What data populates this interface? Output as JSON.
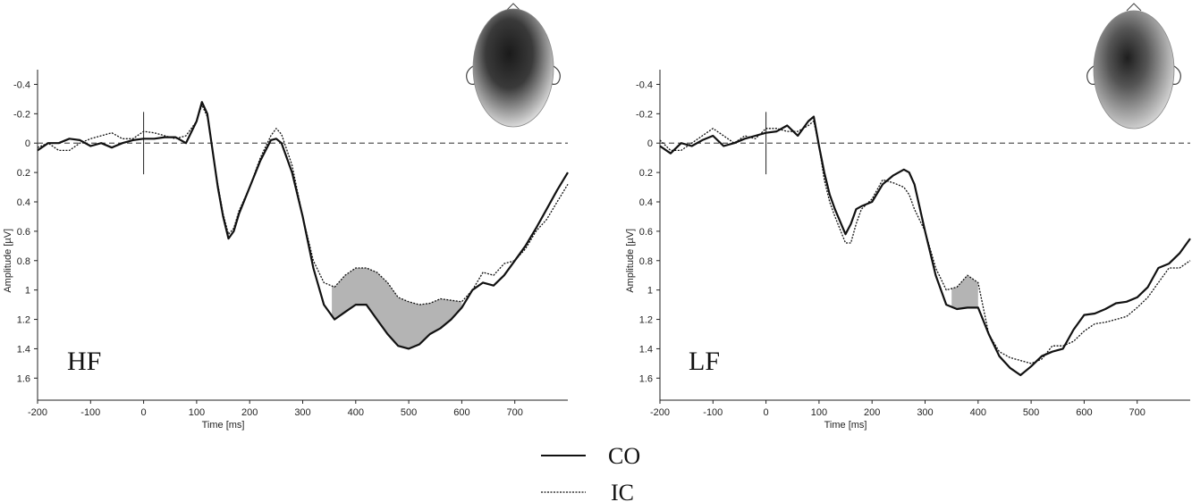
{
  "chart_data": [
    {
      "type": "line",
      "panel_label": "HF",
      "xlabel": "Time [ms]",
      "ylabel": "Amplitude [µV]",
      "xlim": [
        -200,
        800
      ],
      "ylim": [
        -0.5,
        1.75
      ],
      "y_inverted": true,
      "xticks": [
        -200,
        -100,
        0,
        100,
        200,
        300,
        400,
        500,
        600,
        700
      ],
      "yticks": [
        -0.4,
        -0.2,
        0,
        0.2,
        0.4,
        0.6,
        0.8,
        1,
        1.2,
        1.4,
        1.6
      ],
      "ytick_labels": [
        "-0.4",
        "-0.2",
        "0",
        "0.2",
        "0.4",
        "0.6",
        "0.8",
        "1",
        "1.2",
        "1.4",
        "1.6"
      ],
      "shaded_difference": [
        355,
        600
      ],
      "series": [
        {
          "name": "CO",
          "style": "solid",
          "x": [
            -200,
            -180,
            -160,
            -140,
            -120,
            -100,
            -80,
            -60,
            -40,
            -20,
            0,
            20,
            40,
            60,
            80,
            100,
            110,
            120,
            130,
            140,
            150,
            160,
            170,
            180,
            200,
            220,
            240,
            250,
            260,
            280,
            300,
            320,
            340,
            360,
            380,
            400,
            420,
            440,
            460,
            480,
            500,
            520,
            540,
            560,
            580,
            600,
            620,
            640,
            660,
            680,
            700,
            720,
            740,
            760,
            780,
            800
          ],
          "y": [
            0.05,
            0.0,
            0.0,
            -0.03,
            -0.02,
            0.02,
            0.0,
            0.03,
            0.0,
            -0.02,
            -0.03,
            -0.03,
            -0.04,
            -0.04,
            0.0,
            -0.15,
            -0.28,
            -0.2,
            0.05,
            0.3,
            0.5,
            0.65,
            0.6,
            0.48,
            0.3,
            0.12,
            -0.02,
            -0.03,
            0.0,
            0.2,
            0.5,
            0.85,
            1.1,
            1.2,
            1.15,
            1.1,
            1.1,
            1.2,
            1.3,
            1.38,
            1.4,
            1.37,
            1.3,
            1.26,
            1.2,
            1.12,
            1.0,
            0.95,
            0.97,
            0.9,
            0.8,
            0.7,
            0.58,
            0.45,
            0.32,
            0.2
          ]
        },
        {
          "name": "IC",
          "style": "dotted",
          "x": [
            -200,
            -180,
            -160,
            -140,
            -120,
            -100,
            -80,
            -60,
            -40,
            -20,
            0,
            20,
            40,
            60,
            80,
            100,
            110,
            120,
            130,
            140,
            150,
            160,
            170,
            180,
            200,
            220,
            240,
            250,
            260,
            280,
            300,
            320,
            340,
            360,
            380,
            400,
            420,
            440,
            460,
            480,
            500,
            520,
            540,
            560,
            580,
            600,
            620,
            640,
            660,
            680,
            700,
            720,
            740,
            760,
            780,
            800
          ],
          "y": [
            0.03,
            0.0,
            0.05,
            0.05,
            0.0,
            -0.03,
            -0.05,
            -0.07,
            -0.03,
            -0.03,
            -0.08,
            -0.07,
            -0.05,
            -0.03,
            -0.05,
            -0.15,
            -0.26,
            -0.18,
            0.05,
            0.28,
            0.48,
            0.62,
            0.58,
            0.46,
            0.3,
            0.1,
            -0.05,
            -0.1,
            -0.06,
            0.15,
            0.5,
            0.8,
            0.95,
            0.98,
            0.9,
            0.85,
            0.85,
            0.88,
            0.95,
            1.05,
            1.08,
            1.1,
            1.09,
            1.06,
            1.07,
            1.08,
            1.0,
            0.88,
            0.9,
            0.82,
            0.8,
            0.72,
            0.6,
            0.52,
            0.4,
            0.28
          ]
        }
      ]
    },
    {
      "type": "line",
      "panel_label": "LF",
      "xlabel": "Time [ms]",
      "ylabel": "Amplitude [µV]",
      "xlim": [
        -200,
        800
      ],
      "ylim": [
        -0.5,
        1.75
      ],
      "y_inverted": true,
      "xticks": [
        -200,
        -100,
        0,
        100,
        200,
        300,
        400,
        500,
        600,
        700
      ],
      "yticks": [
        -0.4,
        -0.2,
        0,
        0.2,
        0.4,
        0.6,
        0.8,
        1,
        1.2,
        1.4,
        1.6
      ],
      "ytick_labels": [
        "-0.4",
        "-0.2",
        "0",
        "0.2",
        "0.4",
        "0.6",
        "0.8",
        "1",
        "1.2",
        "1.4",
        "1.6"
      ],
      "shaded_difference": [
        350,
        400
      ],
      "series": [
        {
          "name": "CO",
          "style": "solid",
          "x": [
            -200,
            -180,
            -160,
            -140,
            -120,
            -100,
            -80,
            -60,
            -40,
            -20,
            0,
            20,
            40,
            60,
            80,
            90,
            100,
            110,
            120,
            130,
            150,
            160,
            170,
            180,
            200,
            220,
            240,
            260,
            270,
            280,
            300,
            320,
            340,
            360,
            380,
            400,
            420,
            440,
            460,
            480,
            500,
            520,
            540,
            560,
            580,
            600,
            620,
            640,
            660,
            680,
            700,
            720,
            740,
            760,
            780,
            800
          ],
          "y": [
            0.02,
            0.07,
            0.0,
            0.02,
            -0.02,
            -0.05,
            0.02,
            0.0,
            -0.03,
            -0.05,
            -0.07,
            -0.08,
            -0.12,
            -0.05,
            -0.15,
            -0.18,
            0.02,
            0.2,
            0.35,
            0.45,
            0.62,
            0.55,
            0.45,
            0.43,
            0.4,
            0.28,
            0.22,
            0.18,
            0.2,
            0.28,
            0.6,
            0.9,
            1.1,
            1.13,
            1.12,
            1.12,
            1.3,
            1.45,
            1.53,
            1.58,
            1.52,
            1.45,
            1.42,
            1.4,
            1.27,
            1.17,
            1.16,
            1.13,
            1.09,
            1.08,
            1.05,
            0.98,
            0.85,
            0.82,
            0.75,
            0.65
          ]
        },
        {
          "name": "IC",
          "style": "dotted",
          "x": [
            -200,
            -180,
            -160,
            -140,
            -120,
            -100,
            -80,
            -60,
            -40,
            -20,
            0,
            20,
            40,
            60,
            80,
            90,
            100,
            110,
            120,
            130,
            150,
            160,
            170,
            180,
            200,
            220,
            240,
            260,
            270,
            280,
            300,
            320,
            340,
            360,
            380,
            400,
            420,
            440,
            460,
            480,
            500,
            520,
            540,
            560,
            580,
            600,
            620,
            640,
            660,
            680,
            700,
            720,
            740,
            760,
            780,
            800
          ],
          "y": [
            -0.02,
            0.05,
            0.05,
            0.0,
            -0.05,
            -0.1,
            -0.05,
            0.0,
            -0.05,
            -0.03,
            -0.1,
            -0.1,
            -0.08,
            -0.08,
            -0.12,
            -0.15,
            0.02,
            0.25,
            0.4,
            0.5,
            0.68,
            0.68,
            0.55,
            0.45,
            0.38,
            0.25,
            0.27,
            0.3,
            0.35,
            0.45,
            0.6,
            0.85,
            1.0,
            0.98,
            0.9,
            0.95,
            1.3,
            1.42,
            1.46,
            1.48,
            1.5,
            1.47,
            1.38,
            1.38,
            1.35,
            1.28,
            1.23,
            1.22,
            1.2,
            1.18,
            1.12,
            1.05,
            0.95,
            0.85,
            0.85,
            0.8
          ]
        }
      ]
    }
  ],
  "legend": {
    "items": [
      {
        "label": "CO",
        "style": "solid"
      },
      {
        "label": "IC",
        "style": "dotted"
      }
    ]
  },
  "colors": {
    "line": "#111111",
    "shade": "#b4b4b4",
    "axis": "#222222",
    "zero_line": "#555555"
  }
}
